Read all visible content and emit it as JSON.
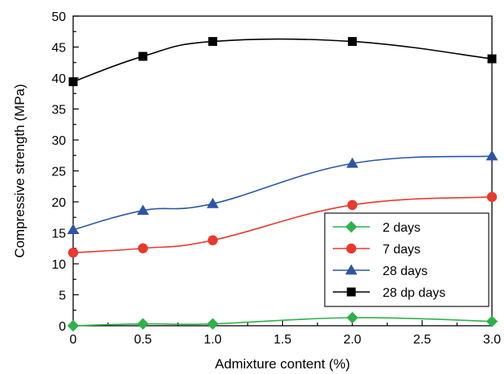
{
  "chart_data": {
    "type": "line",
    "xlabel": "Admixture content (%)",
    "ylabel": "Compressive strength (MPa)",
    "xlim": [
      0,
      3.0
    ],
    "ylim": [
      0,
      50
    ],
    "x_ticks": [
      "0",
      "0.5",
      "1.0",
      "1.5",
      "2.0",
      "2.5",
      "3.0"
    ],
    "y_ticks": [
      "0",
      "5",
      "10",
      "15",
      "20",
      "25",
      "30",
      "35",
      "40",
      "45",
      "50"
    ],
    "x": [
      0,
      0.5,
      1.0,
      2.0,
      3.0
    ],
    "grid": false,
    "legend_position": "bottom-right",
    "series": [
      {
        "name": "2 days",
        "color": "#2db24a",
        "marker": "diamond",
        "values": [
          0.0,
          0.3,
          0.3,
          1.3,
          0.7
        ]
      },
      {
        "name": "7 days",
        "color": "#e8382f",
        "marker": "circle",
        "values": [
          11.8,
          12.5,
          13.8,
          19.5,
          20.8
        ]
      },
      {
        "name": "28 days",
        "color": "#2a55a6",
        "marker": "triangle",
        "values": [
          15.5,
          18.6,
          19.7,
          26.2,
          27.4
        ]
      },
      {
        "name": "28 dp days",
        "color": "#000000",
        "marker": "square",
        "values": [
          39.4,
          43.5,
          45.9,
          45.9,
          43.1
        ]
      }
    ]
  }
}
